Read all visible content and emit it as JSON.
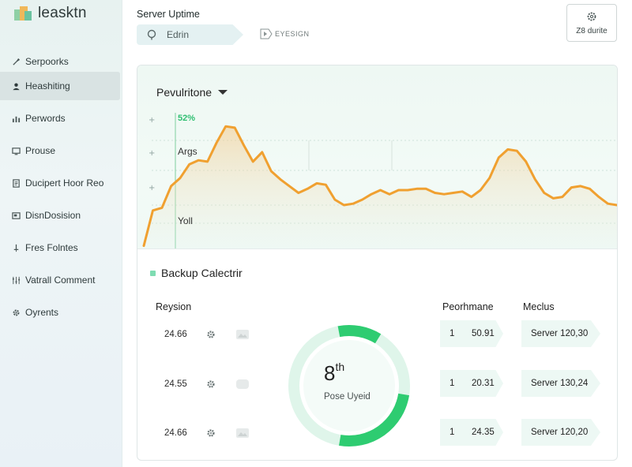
{
  "app": {
    "name": "leasktn"
  },
  "sidebar": {
    "items": [
      {
        "label": "Serpoorks",
        "icon": "wrench-icon"
      },
      {
        "label": "Heashiting",
        "icon": "user-icon"
      },
      {
        "label": "Perwords",
        "icon": "chart-icon"
      },
      {
        "label": "Prouse",
        "icon": "monitor-icon"
      },
      {
        "label": "Ducipert Hoor Reo",
        "icon": "document-icon"
      },
      {
        "label": "DisnDosision",
        "icon": "window-icon"
      },
      {
        "label": "Fres Folntes",
        "icon": "pin-icon"
      },
      {
        "label": "Vatrall Comment",
        "icon": "settings-sliders-icon"
      },
      {
        "label": "Oyrents",
        "icon": "gear-icon"
      }
    ],
    "active_index": 1
  },
  "header": {
    "title": "Server Uptime",
    "tab_edit": "Edrin",
    "tab_design": "EYESIGN",
    "top_button": "Z8 durite"
  },
  "chart": {
    "title": "Pevulritone",
    "percent_label": "52%",
    "label_mid": "Args",
    "label_low": "Yoll",
    "line_color": "#f0a030"
  },
  "chart_data": {
    "type": "area",
    "title": "Pevulritone",
    "ylabel": "",
    "xlabel": "",
    "ylim": [
      0,
      100
    ],
    "x": [
      0,
      1,
      2,
      3,
      4,
      5,
      6,
      7,
      8,
      9,
      10,
      11,
      12,
      13,
      14,
      15,
      16,
      17,
      18,
      19,
      20,
      21,
      22,
      23,
      24,
      25,
      26,
      27,
      28,
      29,
      30,
      31,
      32,
      33,
      34,
      35,
      36,
      37,
      38,
      39,
      40,
      41,
      42,
      43,
      44,
      45,
      46,
      47,
      48,
      49,
      50,
      51,
      52
    ],
    "series": [
      {
        "values": [
          2,
          28,
          30,
          46,
          52,
          62,
          65,
          64,
          78,
          90,
          89,
          76,
          64,
          71,
          57,
          51,
          46,
          41,
          44,
          48,
          47,
          36,
          32,
          33,
          36,
          40,
          43,
          40,
          43,
          43,
          44,
          44,
          41,
          40,
          41,
          42,
          38,
          43,
          52,
          67,
          73,
          72,
          64,
          51,
          41,
          37,
          38,
          45,
          46,
          44,
          38,
          33,
          32
        ]
      }
    ]
  },
  "backup": {
    "title": "Backup Calectrir",
    "col_left": "Reysion",
    "col_perf": "Peorhmane",
    "col_medius": "Meclus",
    "rows": [
      {
        "value": "24.66",
        "perf_a": "1",
        "perf_b": "50.91",
        "server": "Server 120,30"
      },
      {
        "value": "24.55",
        "perf_a": "1",
        "perf_b": "20.31",
        "server": "Server 130,24"
      },
      {
        "value": "24.66",
        "perf_a": "1",
        "perf_b": "24.35",
        "server": "Server 120,20"
      }
    ]
  },
  "gauge": {
    "value": "8",
    "suffix": "th",
    "label": "Pose Uyeid",
    "fraction": 0.28,
    "track_color": "#d9f5ea",
    "fill_color": "#2ecc71"
  }
}
